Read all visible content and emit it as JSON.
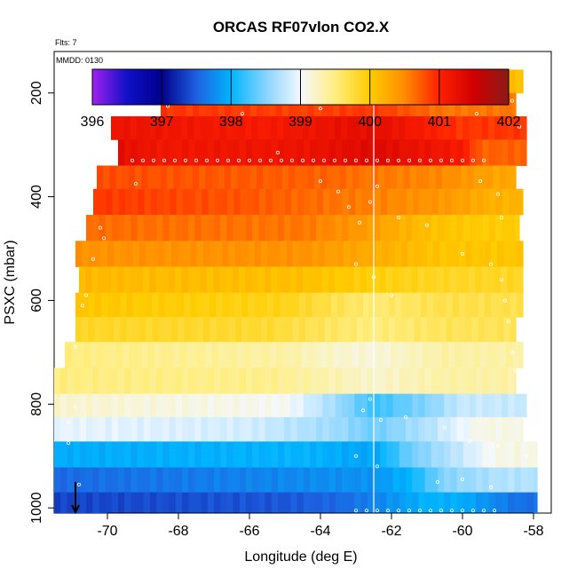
{
  "chart_data": {
    "type": "heatmap",
    "title": "ORCAS RF07vlon CO2.X",
    "info_lines": [
      "Flts: 7",
      "MMDD: 0130"
    ],
    "xlabel": "Longitude (deg E)",
    "ylabel": "PSXC (mbar)",
    "xlim": [
      -71.5,
      -57.5
    ],
    "ylim": [
      1010,
      120
    ],
    "x_ticks": [
      -70,
      -68,
      -66,
      -64,
      -62,
      -60,
      -58
    ],
    "y_ticks": [
      200,
      400,
      600,
      800,
      1000
    ],
    "colorbar": {
      "min": 396,
      "max": 402,
      "ticks": [
        396,
        397,
        398,
        399,
        400,
        401,
        402
      ],
      "color_stops": [
        {
          "v": 396.0,
          "c": "#a020f0"
        },
        {
          "v": 396.5,
          "c": "#1010c8"
        },
        {
          "v": 397.0,
          "c": "#00008b"
        },
        {
          "v": 397.5,
          "c": "#1e60e0"
        },
        {
          "v": 398.0,
          "c": "#00b4ff"
        },
        {
          "v": 398.5,
          "c": "#87d4ff"
        },
        {
          "v": 399.0,
          "c": "#f4f8ff"
        },
        {
          "v": 399.5,
          "c": "#ffee80"
        },
        {
          "v": 400.0,
          "c": "#ffcc00"
        },
        {
          "v": 400.5,
          "c": "#ff8c00"
        },
        {
          "v": 401.0,
          "c": "#ff2000"
        },
        {
          "v": 401.5,
          "c": "#d00000"
        },
        {
          "v": 402.0,
          "c": "#8b1a1a"
        }
      ]
    },
    "vertical_line_lon": -62.5,
    "arrow_lon": -70.9,
    "layers": [
      {
        "p_top": 155,
        "p_bot": 200,
        "lon_start": -69.3,
        "lon_end": -58.3,
        "segments": [
          [
            -69.3,
            401.2
          ],
          [
            -64.0,
            401.15
          ],
          [
            -62.5,
            401.3
          ],
          [
            -60.2,
            400.5
          ],
          [
            -59.0,
            400.1
          ]
        ]
      },
      {
        "p_top": 200,
        "p_bot": 245,
        "lon_start": -68.5,
        "lon_end": -58.5,
        "segments": [
          [
            -68.5,
            400.9
          ],
          [
            -64.0,
            400.85
          ],
          [
            -62.5,
            400.9
          ],
          [
            -60.5,
            400.6
          ]
        ]
      },
      {
        "p_top": 245,
        "p_bot": 290,
        "lon_start": -69.9,
        "lon_end": -58.2,
        "segments": [
          [
            -69.9,
            401.2
          ],
          [
            -65.5,
            401.1
          ],
          [
            -62.5,
            401.3
          ],
          [
            -60.0,
            400.9
          ]
        ]
      },
      {
        "p_top": 290,
        "p_bot": 340,
        "lon_start": -69.7,
        "lon_end": -58.2,
        "segments": [
          [
            -69.7,
            401.3
          ],
          [
            -68.5,
            401.15
          ],
          [
            -64.5,
            401.2
          ],
          [
            -62.5,
            401.35
          ],
          [
            -60.0,
            401.1
          ],
          [
            -59.5,
            400.7
          ]
        ]
      },
      {
        "p_top": 340,
        "p_bot": 385,
        "lon_start": -70.3,
        "lon_end": -58.5,
        "segments": [
          [
            -70.3,
            400.8
          ],
          [
            -64.0,
            400.7
          ],
          [
            -62.5,
            400.6
          ],
          [
            -60.5,
            400.5
          ],
          [
            -59.0,
            400.3
          ]
        ]
      },
      {
        "p_top": 385,
        "p_bot": 435,
        "lon_start": -70.4,
        "lon_end": -58.3,
        "segments": [
          [
            -70.4,
            400.9
          ],
          [
            -66.0,
            400.75
          ],
          [
            -62.5,
            400.55
          ],
          [
            -60.5,
            400.4
          ],
          [
            -59.0,
            400.2
          ]
        ]
      },
      {
        "p_top": 435,
        "p_bot": 485,
        "lon_start": -70.6,
        "lon_end": -58.4,
        "segments": [
          [
            -70.6,
            400.65
          ],
          [
            -64.5,
            400.6
          ],
          [
            -62.5,
            400.35
          ],
          [
            -61.0,
            400.1
          ],
          [
            -59.5,
            400.0
          ]
        ]
      },
      {
        "p_top": 485,
        "p_bot": 535,
        "lon_start": -70.9,
        "lon_end": -58.3,
        "segments": [
          [
            -70.9,
            400.45
          ],
          [
            -64.5,
            400.45
          ],
          [
            -62.5,
            400.25
          ],
          [
            -60.5,
            400.05
          ]
        ]
      },
      {
        "p_top": 535,
        "p_bot": 585,
        "lon_start": -70.8,
        "lon_end": -58.3,
        "segments": [
          [
            -70.8,
            400.15
          ],
          [
            -64.5,
            400.1
          ],
          [
            -62.5,
            399.95
          ],
          [
            -60.5,
            399.85
          ]
        ]
      },
      {
        "p_top": 585,
        "p_bot": 632,
        "lon_start": -70.9,
        "lon_end": -58.3,
        "segments": [
          [
            -70.9,
            400.05
          ],
          [
            -65.0,
            399.9
          ],
          [
            -63.0,
            399.6
          ],
          [
            -62.5,
            399.55
          ],
          [
            -60.5,
            399.7
          ]
        ]
      },
      {
        "p_top": 632,
        "p_bot": 680,
        "lon_start": -70.9,
        "lon_end": -58.5,
        "segments": [
          [
            -70.9,
            399.85
          ],
          [
            -65.5,
            399.8
          ],
          [
            -63.5,
            399.6
          ],
          [
            -62.5,
            399.5
          ],
          [
            -60.5,
            399.65
          ]
        ]
      },
      {
        "p_top": 680,
        "p_bot": 730,
        "lon_start": -71.2,
        "lon_end": -58.3,
        "segments": [
          [
            -71.2,
            399.5
          ],
          [
            -69.0,
            399.45
          ],
          [
            -65.0,
            399.35
          ],
          [
            -63.5,
            399.2
          ],
          [
            -62.5,
            399.15
          ],
          [
            -60.5,
            399.35
          ]
        ]
      },
      {
        "p_top": 730,
        "p_bot": 780,
        "lon_start": -71.5,
        "lon_end": -58.5,
        "segments": [
          [
            -71.5,
            399.5
          ],
          [
            -65.5,
            399.45
          ],
          [
            -63.5,
            399.3
          ],
          [
            -62.5,
            399.2
          ],
          [
            -60.5,
            399.35
          ]
        ]
      },
      {
        "p_top": 780,
        "p_bot": 825,
        "lon_start": -71.5,
        "lon_end": -58.2,
        "segments": [
          [
            -71.5,
            399.2
          ],
          [
            -65.0,
            399.05
          ],
          [
            -63.5,
            398.6
          ],
          [
            -62.5,
            398.2
          ],
          [
            -61.0,
            398.5
          ],
          [
            -60.0,
            398.8
          ]
        ]
      },
      {
        "p_top": 825,
        "p_bot": 872,
        "lon_start": -71.5,
        "lon_end": -58.3,
        "segments": [
          [
            -71.5,
            398.95
          ],
          [
            -66.0,
            398.85
          ],
          [
            -63.5,
            398.6
          ],
          [
            -62.5,
            398.4
          ],
          [
            -61.0,
            398.7
          ],
          [
            -59.5,
            399.1
          ]
        ]
      },
      {
        "p_top": 872,
        "p_bot": 922,
        "lon_start": -71.5,
        "lon_end": -57.9,
        "segments": [
          [
            -71.5,
            397.95
          ],
          [
            -64.5,
            398.0
          ],
          [
            -62.5,
            397.9
          ],
          [
            -61.5,
            398.4
          ],
          [
            -60.0,
            398.8
          ],
          [
            -59.0,
            399.1
          ]
        ]
      },
      {
        "p_top": 922,
        "p_bot": 970,
        "lon_start": -71.5,
        "lon_end": -57.9,
        "segments": [
          [
            -71.5,
            397.55
          ],
          [
            -64.5,
            397.75
          ],
          [
            -62.5,
            397.8
          ],
          [
            -61.5,
            398.0
          ],
          [
            -60.5,
            398.5
          ],
          [
            -59.0,
            398.7
          ]
        ]
      },
      {
        "p_top": 970,
        "p_bot": 1010,
        "lon_start": -71.5,
        "lon_end": -57.9,
        "segments": [
          [
            -71.5,
            397.35
          ],
          [
            -65.0,
            397.45
          ],
          [
            -63.5,
            397.55
          ],
          [
            -62.5,
            397.7
          ],
          [
            -61.0,
            398.0
          ],
          [
            -60.0,
            397.95
          ],
          [
            -58.5,
            397.6
          ]
        ]
      }
    ],
    "observation_tracks": [
      {
        "p": 183,
        "lon_from": -69.0,
        "lon_to": -58.6,
        "step": 0.33
      },
      {
        "p": 330,
        "lon_from": -69.3,
        "lon_to": -59.4,
        "step": 0.3
      },
      {
        "p": 1005,
        "lon_from": -63.0,
        "lon_to": -59.0,
        "step": 0.3
      }
    ],
    "scattered_observations": [
      [
        -68.3,
        225
      ],
      [
        -66.2,
        240
      ],
      [
        -64.0,
        230
      ],
      [
        -59.6,
        240
      ],
      [
        -58.6,
        215
      ],
      [
        -58.4,
        265
      ],
      [
        -69.2,
        375
      ],
      [
        -65.2,
        315
      ],
      [
        -64.0,
        370
      ],
      [
        -63.5,
        390
      ],
      [
        -63.2,
        420
      ],
      [
        -62.9,
        450
      ],
      [
        -62.6,
        410
      ],
      [
        -62.4,
        380
      ],
      [
        -61.8,
        440
      ],
      [
        -61.0,
        455
      ],
      [
        -59.5,
        370
      ],
      [
        -59.0,
        395
      ],
      [
        -58.9,
        440
      ],
      [
        -70.2,
        460
      ],
      [
        -70.1,
        480
      ],
      [
        -70.4,
        520
      ],
      [
        -70.6,
        590
      ],
      [
        -70.7,
        610
      ],
      [
        -63.0,
        530
      ],
      [
        -62.5,
        555
      ],
      [
        -62.0,
        590
      ],
      [
        -60.0,
        510
      ],
      [
        -59.2,
        530
      ],
      [
        -58.9,
        560
      ],
      [
        -58.8,
        600
      ],
      [
        -58.7,
        640
      ],
      [
        -58.6,
        700
      ],
      [
        -58.5,
        735
      ],
      [
        -70.9,
        690
      ],
      [
        -70.9,
        805
      ],
      [
        -71.1,
        835
      ],
      [
        -71.1,
        875
      ],
      [
        -62.8,
        812
      ],
      [
        -62.6,
        790
      ],
      [
        -62.3,
        830
      ],
      [
        -61.6,
        825
      ],
      [
        -60.5,
        845
      ],
      [
        -59.8,
        872
      ],
      [
        -59.0,
        880
      ],
      [
        -58.2,
        900
      ],
      [
        -63.0,
        900
      ],
      [
        -62.4,
        920
      ],
      [
        -60.7,
        950
      ],
      [
        -60.0,
        945
      ],
      [
        -59.2,
        960
      ],
      [
        -70.8,
        955
      ]
    ]
  }
}
